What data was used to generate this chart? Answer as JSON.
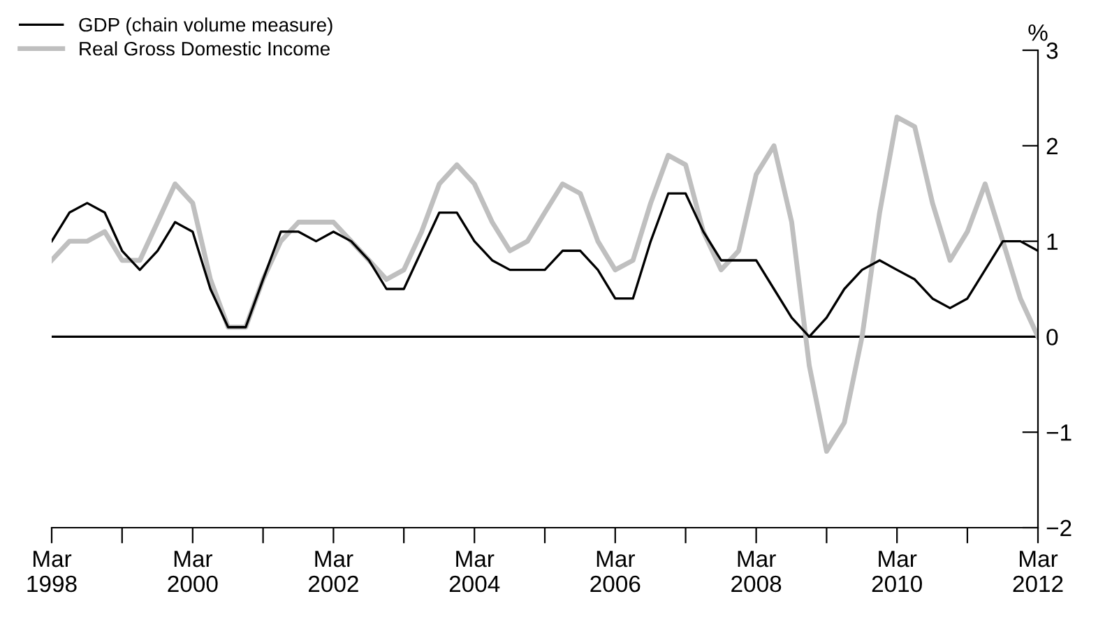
{
  "chart_data": {
    "type": "line",
    "ylabel": "%",
    "x": [
      "1998-03",
      "1998-06",
      "1998-09",
      "1998-12",
      "1999-03",
      "1999-06",
      "1999-09",
      "1999-12",
      "2000-03",
      "2000-06",
      "2000-09",
      "2000-12",
      "2001-03",
      "2001-06",
      "2001-09",
      "2001-12",
      "2002-03",
      "2002-06",
      "2002-09",
      "2002-12",
      "2003-03",
      "2003-06",
      "2003-09",
      "2003-12",
      "2004-03",
      "2004-06",
      "2004-09",
      "2004-12",
      "2005-03",
      "2005-06",
      "2005-09",
      "2005-12",
      "2006-03",
      "2006-06",
      "2006-09",
      "2006-12",
      "2007-03",
      "2007-06",
      "2007-09",
      "2007-12",
      "2008-03",
      "2008-06",
      "2008-09",
      "2008-12",
      "2009-03",
      "2009-06",
      "2009-09",
      "2009-12",
      "2010-03",
      "2010-06",
      "2010-09",
      "2010-12",
      "2011-03",
      "2011-06",
      "2011-09",
      "2011-12",
      "2012-03"
    ],
    "xlim": [
      "1998-03",
      "2012-03"
    ],
    "xticks": [
      {
        "value": "1998-03",
        "label": "Mar\n1998"
      },
      {
        "value": "1999-03",
        "label": null
      },
      {
        "value": "2000-03",
        "label": "Mar\n2000"
      },
      {
        "value": "2001-03",
        "label": null
      },
      {
        "value": "2002-03",
        "label": "Mar\n2002"
      },
      {
        "value": "2003-03",
        "label": null
      },
      {
        "value": "2004-03",
        "label": "Mar\n2004"
      },
      {
        "value": "2005-03",
        "label": null
      },
      {
        "value": "2006-03",
        "label": "Mar\n2006"
      },
      {
        "value": "2007-03",
        "label": null
      },
      {
        "value": "2008-03",
        "label": "Mar\n2008"
      },
      {
        "value": "2009-03",
        "label": null
      },
      {
        "value": "2010-03",
        "label": "Mar\n2010"
      },
      {
        "value": "2011-03",
        "label": null
      },
      {
        "value": "2012-03",
        "label": "Mar\n2012"
      }
    ],
    "ylim": [
      -2,
      3
    ],
    "yticks": [
      {
        "value": -2,
        "label": "−2"
      },
      {
        "value": -1,
        "label": "−1"
      },
      0,
      1,
      2,
      3
    ],
    "grid": false,
    "legend": "top left",
    "marker": "none",
    "line_style": "solid",
    "ref_lines": [
      {
        "axis": "y",
        "value": 0,
        "color": "#000000"
      }
    ],
    "series": [
      {
        "name": "GDP (chain volume measure)",
        "color": "#000000",
        "values": [
          1.0,
          1.3,
          1.4,
          1.3,
          0.9,
          0.7,
          0.9,
          1.2,
          1.1,
          0.5,
          0.1,
          0.1,
          0.6,
          1.1,
          1.1,
          1.0,
          1.1,
          1.0,
          0.8,
          0.5,
          0.5,
          0.9,
          1.3,
          1.3,
          1.0,
          0.8,
          0.7,
          0.7,
          0.7,
          0.9,
          0.9,
          0.7,
          0.4,
          0.4,
          1.0,
          1.5,
          1.5,
          1.1,
          0.8,
          0.8,
          0.8,
          0.5,
          0.2,
          0.0,
          0.2,
          0.5,
          0.7,
          0.8,
          0.7,
          0.6,
          0.4,
          0.3,
          0.4,
          0.7,
          1.0,
          1.0,
          0.9
        ]
      },
      {
        "name": "Real Gross Domestic Income",
        "color": "#bfbfbf",
        "values": [
          0.8,
          1.0,
          1.0,
          1.1,
          0.8,
          0.8,
          1.2,
          1.6,
          1.4,
          0.6,
          0.1,
          0.1,
          0.6,
          1.0,
          1.2,
          1.2,
          1.2,
          1.0,
          0.8,
          0.6,
          0.7,
          1.1,
          1.6,
          1.8,
          1.6,
          1.2,
          0.9,
          1.0,
          1.3,
          1.6,
          1.5,
          1.0,
          0.7,
          0.8,
          1.4,
          1.9,
          1.8,
          1.1,
          0.7,
          0.9,
          1.7,
          2.0,
          1.2,
          -0.3,
          -1.2,
          -0.9,
          0.0,
          1.3,
          2.3,
          2.2,
          1.4,
          0.8,
          1.1,
          1.6,
          1.0,
          0.4,
          0.0
        ]
      }
    ]
  }
}
